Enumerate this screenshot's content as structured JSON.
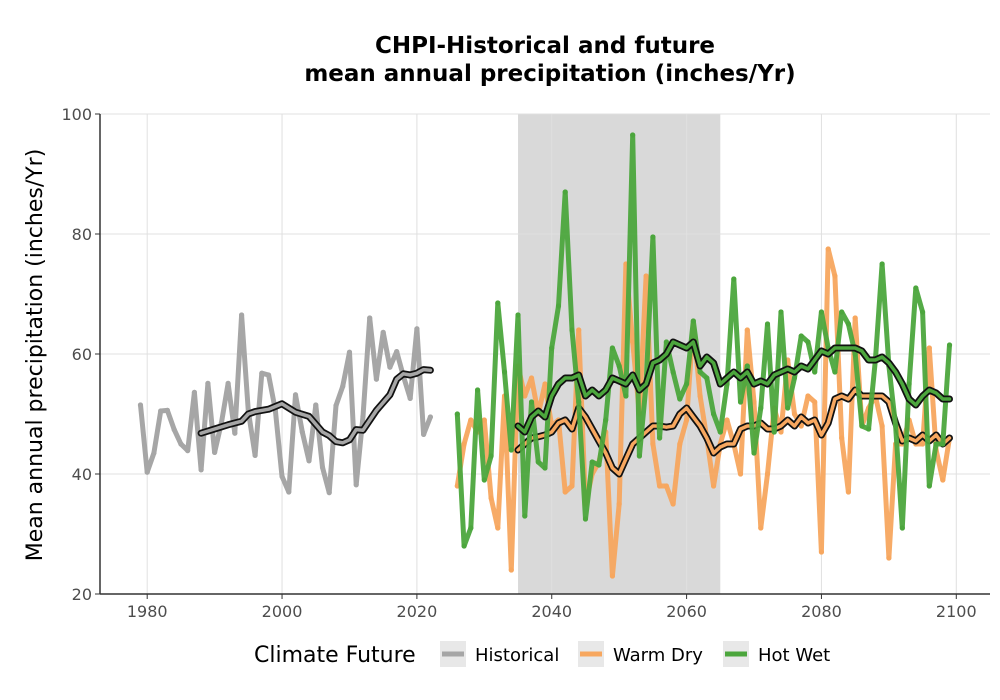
{
  "chart_data": {
    "type": "line",
    "title_line1": "CHPI-Historical and future",
    "title_line2": "mean annual precipitation (inches/Yr)",
    "ylabel": "Mean annual precipitation (inches/Yr)",
    "xlabel": "",
    "xlim": [
      1973,
      2105
    ],
    "ylim": [
      20,
      100
    ],
    "x_ticks": [
      1980,
      2000,
      2020,
      2040,
      2060,
      2080,
      2100
    ],
    "y_ticks": [
      20,
      40,
      60,
      80,
      100
    ],
    "grid": true,
    "shaded_band": {
      "x_start": 2035,
      "x_end": 2065
    },
    "legend": {
      "title": "Climate Future",
      "placement": "bottom",
      "entries": [
        {
          "label": "Historical",
          "color": "#a6a6a6"
        },
        {
          "label": "Warm Dry",
          "color": "#f7a75f"
        },
        {
          "label": "Hot Wet",
          "color": "#4ca63d"
        }
      ]
    },
    "series": [
      {
        "name": "Historical",
        "color": "#a6a6a6",
        "x": [
          1979,
          1980,
          1981,
          1982,
          1983,
          1984,
          1985,
          1986,
          1987,
          1988,
          1989,
          1990,
          1991,
          1992,
          1993,
          1994,
          1995,
          1996,
          1997,
          1998,
          1999,
          2000,
          2001,
          2002,
          2003,
          2004,
          2005,
          2006,
          2007,
          2008,
          2009,
          2010,
          2011,
          2012,
          2013,
          2014,
          2015,
          2016,
          2017,
          2018,
          2019,
          2020,
          2021,
          2022
        ],
        "values": [
          51.5,
          40.3,
          43.5,
          50.5,
          50.6,
          47.4,
          45.0,
          43.9,
          53.6,
          40.7,
          55.1,
          43.6,
          48.5,
          55.1,
          46.8,
          66.5,
          50.5,
          43.1,
          56.8,
          56.5,
          50.7,
          39.6,
          37.0,
          53.2,
          47.0,
          42.2,
          51.5,
          41.1,
          36.9,
          51.4,
          54.6,
          60.3,
          38.2,
          49.6,
          66.0,
          55.8,
          63.6,
          57.8,
          60.4,
          56.3,
          52.6,
          64.2,
          46.6,
          49.5
        ]
      },
      {
        "name": "Historical-smooth",
        "color": "#a6a6a6",
        "x": [
          1988,
          1990,
          1992,
          1994,
          1995,
          1996,
          1998,
          2000,
          2002,
          2004,
          2006,
          2007,
          2008,
          2009,
          2010,
          2011,
          2012,
          2014,
          2016,
          2017,
          2018,
          2019,
          2020,
          2021,
          2022
        ],
        "values": [
          46.8,
          47.5,
          48.2,
          48.8,
          50.0,
          50.4,
          50.8,
          51.7,
          50.3,
          49.6,
          47.0,
          46.4,
          45.4,
          45.2,
          45.7,
          47.4,
          47.3,
          50.6,
          53.2,
          55.8,
          56.7,
          56.5,
          56.8,
          57.4,
          57.3
        ]
      },
      {
        "name": "Warm Dry",
        "color": "#f7a75f",
        "x": [
          2026,
          2027,
          2028,
          2029,
          2030,
          2031,
          2032,
          2033,
          2034,
          2035,
          2036,
          2037,
          2038,
          2039,
          2040,
          2041,
          2042,
          2043,
          2044,
          2045,
          2046,
          2047,
          2048,
          2049,
          2050,
          2051,
          2052,
          2053,
          2054,
          2055,
          2056,
          2057,
          2058,
          2059,
          2060,
          2061,
          2062,
          2063,
          2064,
          2065,
          2066,
          2067,
          2068,
          2069,
          2070,
          2071,
          2072,
          2073,
          2074,
          2075,
          2076,
          2077,
          2078,
          2079,
          2080,
          2081,
          2082,
          2083,
          2084,
          2085,
          2086,
          2087,
          2088,
          2089,
          2090,
          2091,
          2092,
          2093,
          2094,
          2095,
          2096,
          2097,
          2098,
          2099
        ],
        "values": [
          38.0,
          45.0,
          49.0,
          47.0,
          49.0,
          36.0,
          31.0,
          53.0,
          24.0,
          58.0,
          53.0,
          56.0,
          50.0,
          55.0,
          48.0,
          49.0,
          37.0,
          38.0,
          64.0,
          35.0,
          40.0,
          42.0,
          47.0,
          23.0,
          35.0,
          75.0,
          62.0,
          50.0,
          73.0,
          45.0,
          38.0,
          38.0,
          35.0,
          45.0,
          49.0,
          65.0,
          53.0,
          46.0,
          38.0,
          45.0,
          49.0,
          45.0,
          40.0,
          64.0,
          52.0,
          31.0,
          40.0,
          51.0,
          47.0,
          59.0,
          50.0,
          48.0,
          53.0,
          52.0,
          27.0,
          77.5,
          73.0,
          46.0,
          37.0,
          66.0,
          48.0,
          51.0,
          53.0,
          48.0,
          26.0,
          45.0,
          45.0,
          49.0,
          45.0,
          45.0,
          61.0,
          44.0,
          39.0,
          46.0
        ]
      },
      {
        "name": "Warm Dry-smooth",
        "color": "#f7a75f",
        "x": [
          2035,
          2036,
          2037,
          2038,
          2039,
          2040,
          2041,
          2042,
          2043,
          2044,
          2045,
          2046,
          2047,
          2048,
          2049,
          2050,
          2051,
          2052,
          2053,
          2054,
          2055,
          2056,
          2057,
          2058,
          2059,
          2060,
          2061,
          2062,
          2063,
          2064,
          2065,
          2066,
          2067,
          2068,
          2069,
          2070,
          2071,
          2072,
          2073,
          2074,
          2075,
          2076,
          2077,
          2078,
          2079,
          2080,
          2081,
          2082,
          2083,
          2084,
          2085,
          2086,
          2087,
          2088,
          2089,
          2090,
          2091,
          2092,
          2093,
          2094,
          2095,
          2096,
          2097,
          2098,
          2099
        ],
        "values": [
          44.0,
          45.0,
          46.0,
          46.2,
          46.5,
          47.0,
          48.5,
          49.0,
          47.5,
          51.0,
          49.5,
          47.5,
          45.5,
          43.5,
          41.0,
          40.0,
          42.5,
          45.0,
          46.0,
          47.0,
          48.0,
          48.0,
          47.8,
          48.0,
          50.0,
          51.0,
          49.5,
          48.0,
          46.0,
          43.5,
          44.5,
          45.0,
          45.0,
          47.5,
          48.0,
          48.0,
          48.5,
          47.5,
          47.5,
          48.0,
          49.0,
          48.0,
          49.5,
          48.5,
          49.0,
          46.5,
          48.5,
          52.5,
          53.0,
          52.5,
          54.0,
          53.0,
          53.0,
          53.0,
          53.0,
          52.0,
          48.5,
          45.5,
          46.0,
          45.5,
          46.5,
          45.5,
          46.5,
          45.0,
          46.0
        ]
      },
      {
        "name": "Hot Wet",
        "color": "#4ca63d",
        "x": [
          2026,
          2027,
          2028,
          2029,
          2030,
          2031,
          2032,
          2033,
          2034,
          2035,
          2036,
          2037,
          2038,
          2039,
          2040,
          2041,
          2042,
          2043,
          2044,
          2045,
          2046,
          2047,
          2048,
          2049,
          2050,
          2051,
          2052,
          2053,
          2054,
          2055,
          2056,
          2057,
          2058,
          2059,
          2060,
          2061,
          2062,
          2063,
          2064,
          2065,
          2066,
          2067,
          2068,
          2069,
          2070,
          2071,
          2072,
          2073,
          2074,
          2075,
          2076,
          2077,
          2078,
          2079,
          2080,
          2081,
          2082,
          2083,
          2084,
          2085,
          2086,
          2087,
          2088,
          2089,
          2090,
          2091,
          2092,
          2093,
          2094,
          2095,
          2096,
          2097,
          2098,
          2099
        ],
        "values": [
          50.0,
          28.0,
          31.0,
          54.0,
          39.0,
          43.0,
          68.5,
          57.0,
          44.0,
          66.5,
          33.0,
          52.0,
          42.0,
          41.0,
          61.0,
          68.0,
          87.0,
          64.0,
          52.0,
          32.5,
          42.0,
          41.5,
          49.0,
          61.0,
          58.0,
          53.0,
          96.5,
          43.0,
          55.0,
          79.5,
          46.0,
          62.0,
          57.0,
          52.5,
          55.0,
          65.5,
          57.0,
          56.0,
          50.0,
          47.0,
          55.0,
          72.5,
          52.0,
          58.0,
          43.5,
          51.0,
          65.0,
          47.0,
          67.0,
          51.0,
          56.0,
          63.0,
          62.0,
          57.0,
          67.0,
          61.0,
          57.0,
          67.0,
          65.0,
          60.0,
          48.0,
          47.5,
          59.0,
          75.0,
          58.0,
          48.0,
          31.0,
          55.0,
          71.0,
          67.0,
          38.0,
          45.0,
          45.0,
          61.5
        ]
      },
      {
        "name": "Hot Wet-smooth",
        "color": "#4ca63d",
        "x": [
          2035,
          2036,
          2037,
          2038,
          2039,
          2040,
          2041,
          2042,
          2043,
          2044,
          2045,
          2046,
          2047,
          2048,
          2049,
          2050,
          2051,
          2052,
          2053,
          2054,
          2055,
          2056,
          2057,
          2058,
          2059,
          2060,
          2061,
          2062,
          2063,
          2064,
          2065,
          2066,
          2067,
          2068,
          2069,
          2070,
          2071,
          2072,
          2073,
          2074,
          2075,
          2076,
          2077,
          2078,
          2079,
          2080,
          2081,
          2082,
          2083,
          2084,
          2085,
          2086,
          2087,
          2088,
          2089,
          2090,
          2091,
          2092,
          2093,
          2094,
          2095,
          2096,
          2097,
          2098,
          2099
        ],
        "values": [
          48.0,
          47.0,
          49.5,
          50.5,
          49.5,
          53.0,
          55.0,
          56.0,
          56.0,
          56.5,
          53.0,
          54.0,
          53.0,
          54.0,
          56.0,
          55.5,
          55.0,
          56.5,
          54.0,
          55.0,
          58.5,
          59.0,
          60.0,
          62.0,
          61.5,
          61.0,
          62.0,
          58.0,
          59.5,
          58.5,
          55.0,
          56.0,
          57.0,
          56.0,
          57.0,
          55.0,
          55.5,
          55.0,
          56.5,
          57.0,
          57.5,
          57.0,
          58.0,
          57.5,
          59.0,
          60.5,
          60.0,
          61.0,
          61.0,
          61.0,
          61.0,
          60.5,
          59.0,
          59.0,
          59.5,
          58.5,
          57.0,
          55.0,
          52.5,
          51.5,
          53.0,
          54.0,
          53.5,
          52.5,
          52.5
        ]
      }
    ]
  }
}
